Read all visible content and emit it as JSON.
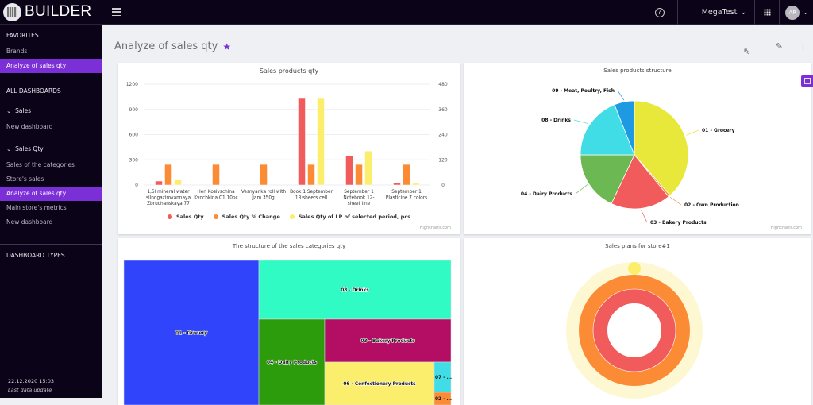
{
  "app": {
    "name": "BUILDER"
  },
  "topbar": {
    "tenant": "MegaTest",
    "avatar_initials": "AR",
    "help_label": "?"
  },
  "sidebar": {
    "favorites_heading": "FAVORITES",
    "favorites": [
      {
        "label": "Brands",
        "active": false
      },
      {
        "label": "Analyze of sales qty",
        "active": true
      }
    ],
    "all_dashboards_heading": "ALL DASHBOARDS",
    "groups": [
      {
        "label": "Sales",
        "items": [
          {
            "label": "New dashboard",
            "active": false
          }
        ]
      },
      {
        "label": "Sales Qty",
        "items": [
          {
            "label": "Sales of the categories",
            "active": false
          },
          {
            "label": "Store's sales",
            "active": false
          },
          {
            "label": "Analyze of sales qty",
            "active": true
          },
          {
            "label": "Main store's metrics",
            "active": false
          },
          {
            "label": "New dashboard",
            "active": false
          }
        ]
      }
    ],
    "dashboard_types_heading": "DASHBOARD TYPES",
    "footer": {
      "timestamp": "22.12.2020 15:03",
      "label": "Last data update"
    }
  },
  "page": {
    "title": "Analyze of sales qty",
    "favorite": true
  },
  "colors": {
    "accent": "#7b2fd6",
    "sidebar_bg": "#0b0418"
  },
  "chart_data": [
    {
      "type": "bar",
      "title": "Sales products qty",
      "categories": [
        "1,5l mineral water silnogazirovannaya Zbruchanskaya 77",
        "Hen Kosivschina Kvochkina C1 10pc",
        "Vesnyanka roll with jam 350g",
        "Book 1 September 18 sheets cell",
        "September 1 Notebook 12-sheet line",
        "September 1 Plasticine 7 colors"
      ],
      "category_lines": [
        [
          "1,5l mineral water",
          "silnogazirovannaya",
          "Zbruchanskaya 77"
        ],
        [
          "Hen Kosivschina",
          "Kvochkina C1 10pc"
        ],
        [
          "Vesnyanka roll with",
          "jam 350g"
        ],
        [
          "Book 1 September",
          "18 sheets cell"
        ],
        [
          "September 1",
          "Notebook 12-",
          "sheet line"
        ],
        [
          "September 1",
          "Plasticine 7 colors"
        ]
      ],
      "series": [
        {
          "name": "Sales Qty",
          "color": "#f25b5b",
          "values": [
            47,
            0,
            0,
            1030,
            350,
            28
          ]
        },
        {
          "name": "Sales Qty % Change",
          "color": "#fb8c35",
          "values": [
            245,
            245,
            245,
            245,
            245,
            245
          ]
        },
        {
          "name": "Sales Qty of LP of selected period, pcs",
          "color": "#fbee6d",
          "values": [
            60,
            0,
            0,
            1030,
            405,
            20
          ]
        }
      ],
      "y_left": {
        "min": 0,
        "max": 1200,
        "ticks": [
          "0",
          "300",
          "600",
          "900",
          "1200"
        ]
      },
      "y_right": {
        "min": 0,
        "max": 480,
        "ticks": [
          "0",
          "120",
          "240",
          "360",
          "480"
        ]
      },
      "legend": "bottom",
      "credit": "Highcharts.com"
    },
    {
      "type": "pie",
      "title": "Sales products structure",
      "slices": [
        {
          "name": "01 - Grocery",
          "value": 38.5,
          "color": "#e8e83a"
        },
        {
          "name": "02 - Own Production",
          "value": 0.6,
          "color": "#fb8c35"
        },
        {
          "name": "03 - Bakery Products",
          "value": 17.9,
          "color": "#f25b5b"
        },
        {
          "name": "04 - Dairy Products",
          "value": 18.0,
          "color": "#6cb852"
        },
        {
          "name": "08 - Drinks",
          "value": 19.0,
          "color": "#40dde6"
        },
        {
          "name": "09 - Meat, Poultry, Fish",
          "value": 6.0,
          "color": "#1e9ae3"
        }
      ],
      "credit": "Highcharts.com"
    },
    {
      "type": "treemap",
      "title": "The structure of the sales categories qty",
      "cells": [
        {
          "name": "01 - Grocery",
          "color": "#2f44fb"
        },
        {
          "name": "08 - Drinks",
          "color": "#30fbc4"
        },
        {
          "name": "04 - Dairy Products",
          "color": "#2c9b0c"
        },
        {
          "name": "03 - Bakery Products",
          "color": "#b30d64"
        },
        {
          "name": "06 - Confectionery Products",
          "color": "#fbee6d"
        },
        {
          "name": "07 - ...",
          "color": "#40dde6"
        },
        {
          "name": "02 - ...",
          "color": "#fb8c35"
        }
      ]
    },
    {
      "type": "solidgauge",
      "title": "Sales plans for store#1",
      "rings": [
        {
          "name": "outer",
          "color": "#fbee6d",
          "track": "#fdf8d2",
          "percent": 0
        },
        {
          "name": "middle",
          "color": "#fb8c35",
          "percent": 100
        },
        {
          "name": "inner",
          "color": "#f25b5b",
          "percent": 100
        }
      ]
    }
  ]
}
